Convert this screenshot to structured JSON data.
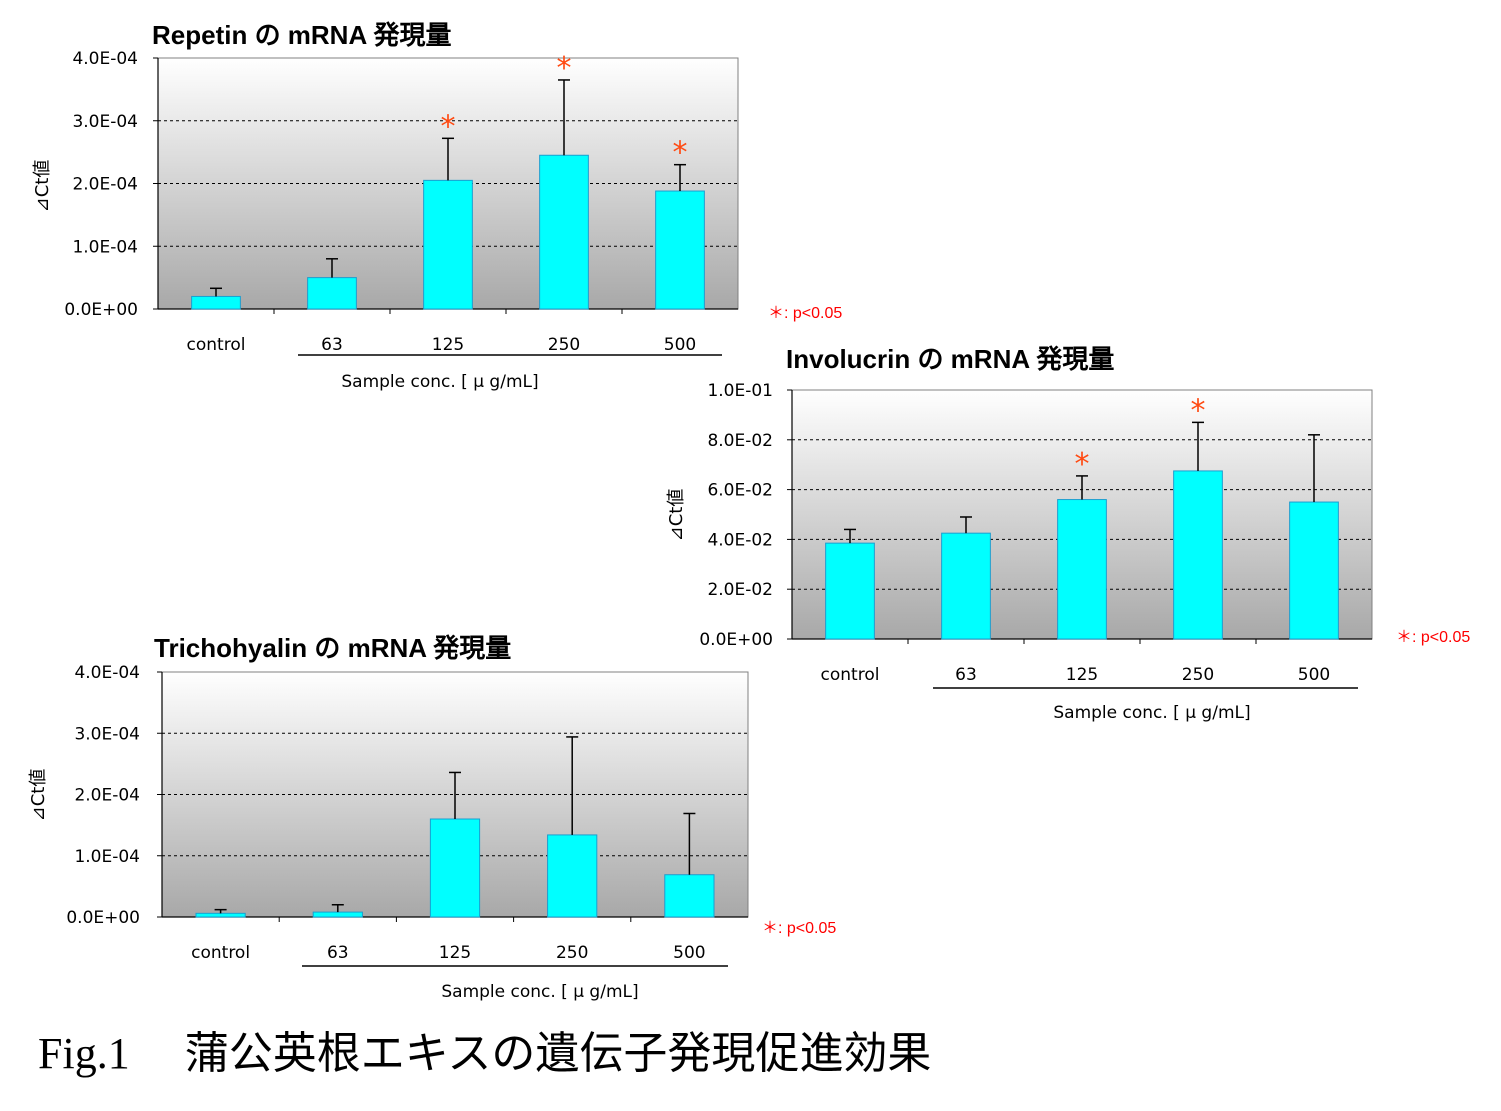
{
  "figure_caption": "Fig.1　 蒲公英根エキスの遺伝子発現促進効果",
  "colors": {
    "bar": "#00ffff",
    "bar_border": "#1a9fd0",
    "significance": "#ff4a12",
    "note": "#ff0000"
  },
  "chart_data": [
    {
      "type": "bar",
      "title": "Repetin の mRNA 発現量",
      "xlabel": "Sample conc. [ μ g/mL]",
      "ylabel": "⊿Ct値",
      "ylim": [
        0,
        0.0004
      ],
      "yticks": [
        "0.0E+00",
        "1.0E-04",
        "2.0E-04",
        "3.0E-04",
        "4.0E-04"
      ],
      "categories": [
        "control",
        "63",
        "125",
        "250",
        "500"
      ],
      "values": [
        2e-05,
        5e-05,
        0.000205,
        0.000245,
        0.000188
      ],
      "errors": [
        1.3e-05,
        3e-05,
        6.7e-05,
        0.00012,
        4.2e-05
      ],
      "significant": [
        false,
        false,
        true,
        true,
        true
      ],
      "significance_note": "＊: p<0.05",
      "grid": true
    },
    {
      "type": "bar",
      "title": "Involucrin の mRNA 発現量",
      "xlabel": "Sample conc. [ μ g/mL]",
      "ylabel": "⊿Ct値",
      "ylim": [
        0,
        0.1
      ],
      "yticks": [
        "0.0E+00",
        "2.0E-02",
        "4.0E-02",
        "6.0E-02",
        "8.0E-02",
        "1.0E-01"
      ],
      "categories": [
        "control",
        "63",
        "125",
        "250",
        "500"
      ],
      "values": [
        0.0385,
        0.0425,
        0.056,
        0.0675,
        0.055
      ],
      "errors": [
        0.0055,
        0.0065,
        0.0095,
        0.0195,
        0.027
      ],
      "significant": [
        false,
        false,
        true,
        true,
        false
      ],
      "significance_note": "＊: p<0.05",
      "grid": true
    },
    {
      "type": "bar",
      "title": "Trichohyalin の mRNA 発現量",
      "xlabel": "Sample conc. [ μ g/mL]",
      "ylabel": "⊿Ct値",
      "ylim": [
        0,
        0.0004
      ],
      "yticks": [
        "0.0E+00",
        "1.0E-04",
        "2.0E-04",
        "3.0E-04",
        "4.0E-04"
      ],
      "categories": [
        "control",
        "63",
        "125",
        "250",
        "500"
      ],
      "values": [
        6e-06,
        8e-06,
        0.00016,
        0.000134,
        6.9e-05
      ],
      "errors": [
        6e-06,
        1.2e-05,
        7.6e-05,
        0.00016,
        0.0001
      ],
      "significant": [
        false,
        false,
        false,
        false,
        false
      ],
      "significance_note": "＊: p<0.05",
      "grid": true
    }
  ]
}
